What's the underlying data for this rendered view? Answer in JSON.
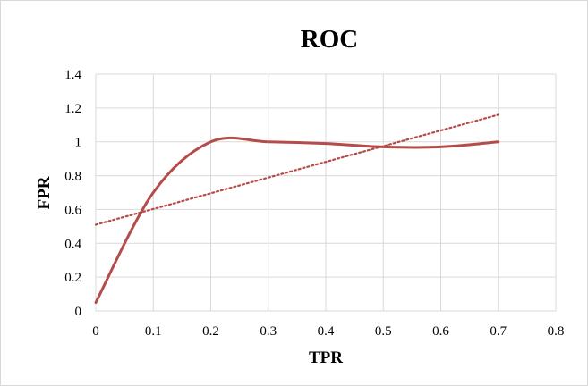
{
  "chart_data": {
    "type": "line",
    "title": "ROC",
    "xlabel": "TPR",
    "ylabel": "FPR",
    "xlim": [
      0,
      0.8
    ],
    "ylim": [
      0,
      1.4
    ],
    "xticks": [
      "0",
      "0.1",
      "0.2",
      "0.3",
      "0.4",
      "0.5",
      "0.6",
      "0.7",
      "0.8"
    ],
    "yticks": [
      "0",
      "0.2",
      "0.4",
      "0.6",
      "0.8",
      "1",
      "1.2",
      "1.4"
    ],
    "grid": true,
    "legend": "none",
    "series": [
      {
        "kind": "smooth-line",
        "color": "#b44c4a",
        "x": [
          0,
          0.1,
          0.2,
          0.3,
          0.4,
          0.5,
          0.6,
          0.7
        ],
        "y": [
          0.05,
          0.7,
          1.0,
          1.0,
          0.99,
          0.97,
          0.97,
          1.0
        ]
      },
      {
        "kind": "linear-trendline",
        "color": "#b44c4a",
        "x": [
          0,
          0.7
        ],
        "y": [
          0.51,
          1.16
        ]
      }
    ]
  }
}
